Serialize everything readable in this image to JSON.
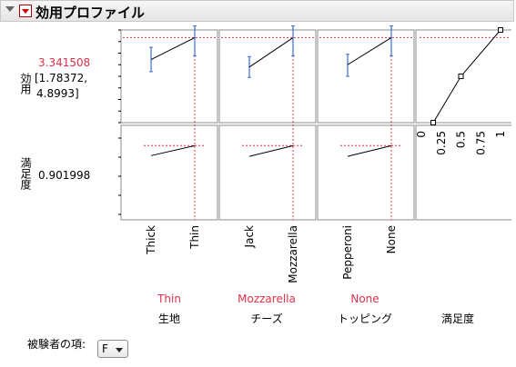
{
  "header": {
    "title": "効用プロファイル",
    "icons": [
      "collapse-triangle-icon",
      "red-menu-triangle-icon"
    ]
  },
  "rows": {
    "utility": {
      "label": "効用",
      "value": "3.341508",
      "ci_low": "[1.78372,",
      "ci_high": "4.8993]"
    },
    "desirability": {
      "label": "満足度",
      "value": "0.901998"
    }
  },
  "factors": [
    {
      "name": "生地",
      "current": "Thin",
      "levels": [
        "Thick",
        "Thin"
      ]
    },
    {
      "name": "チーズ",
      "current": "Mozzarella",
      "levels": [
        "Jack",
        "Mozzarella"
      ]
    },
    {
      "name": "トッピング",
      "current": "None",
      "levels": [
        "Pepperoni",
        "None"
      ]
    },
    {
      "name": "満足度",
      "current": "",
      "levels": [
        "0",
        "0.25",
        "0.5",
        "0.75",
        "1"
      ]
    }
  ],
  "subject": {
    "label": "被験者の項:",
    "value": "F"
  },
  "colors": {
    "crosshair": "#e0304a",
    "errorbar": "#3b6fd6",
    "current": "#e0304a"
  },
  "chart_data": {
    "type": "line",
    "utility_axis": {
      "ylim": [
        -4,
        4
      ],
      "ticks": [
        "-4",
        "-3",
        "-2",
        "-1",
        "0",
        "1",
        "2",
        "3",
        "4"
      ],
      "current": 3.341508
    },
    "desirability_axis": {
      "ylim": [
        0,
        1
      ],
      "ticks": [
        "0",
        "0.25",
        "0.5",
        "0.75",
        "1"
      ],
      "current": 0.901998
    },
    "panels": [
      {
        "factor": "生地",
        "levels": [
          "Thick",
          "Thin"
        ],
        "utility": [
          1.45,
          3.34
        ],
        "ci": [
          [
            0.4,
            2.5
          ],
          [
            1.78,
            4.9
          ]
        ],
        "desirability": [
          0.77,
          0.9
        ]
      },
      {
        "factor": "チーズ",
        "levels": [
          "Jack",
          "Mozzarella"
        ],
        "utility": [
          0.8,
          3.34
        ],
        "ci": [
          [
            -0.1,
            1.7
          ],
          [
            1.78,
            4.9
          ]
        ],
        "desirability": [
          0.76,
          0.9
        ]
      },
      {
        "factor": "トッピング",
        "levels": [
          "Pepperoni",
          "None"
        ],
        "utility": [
          1.0,
          3.34
        ],
        "ci": [
          [
            0.0,
            1.9
          ],
          [
            1.78,
            4.9
          ]
        ],
        "desirability": [
          0.76,
          0.9
        ]
      }
    ],
    "desirability_function": {
      "x": [
        0.15,
        0.5,
        1.0
      ],
      "y": [
        -4,
        0,
        4
      ],
      "marker": "square"
    }
  }
}
